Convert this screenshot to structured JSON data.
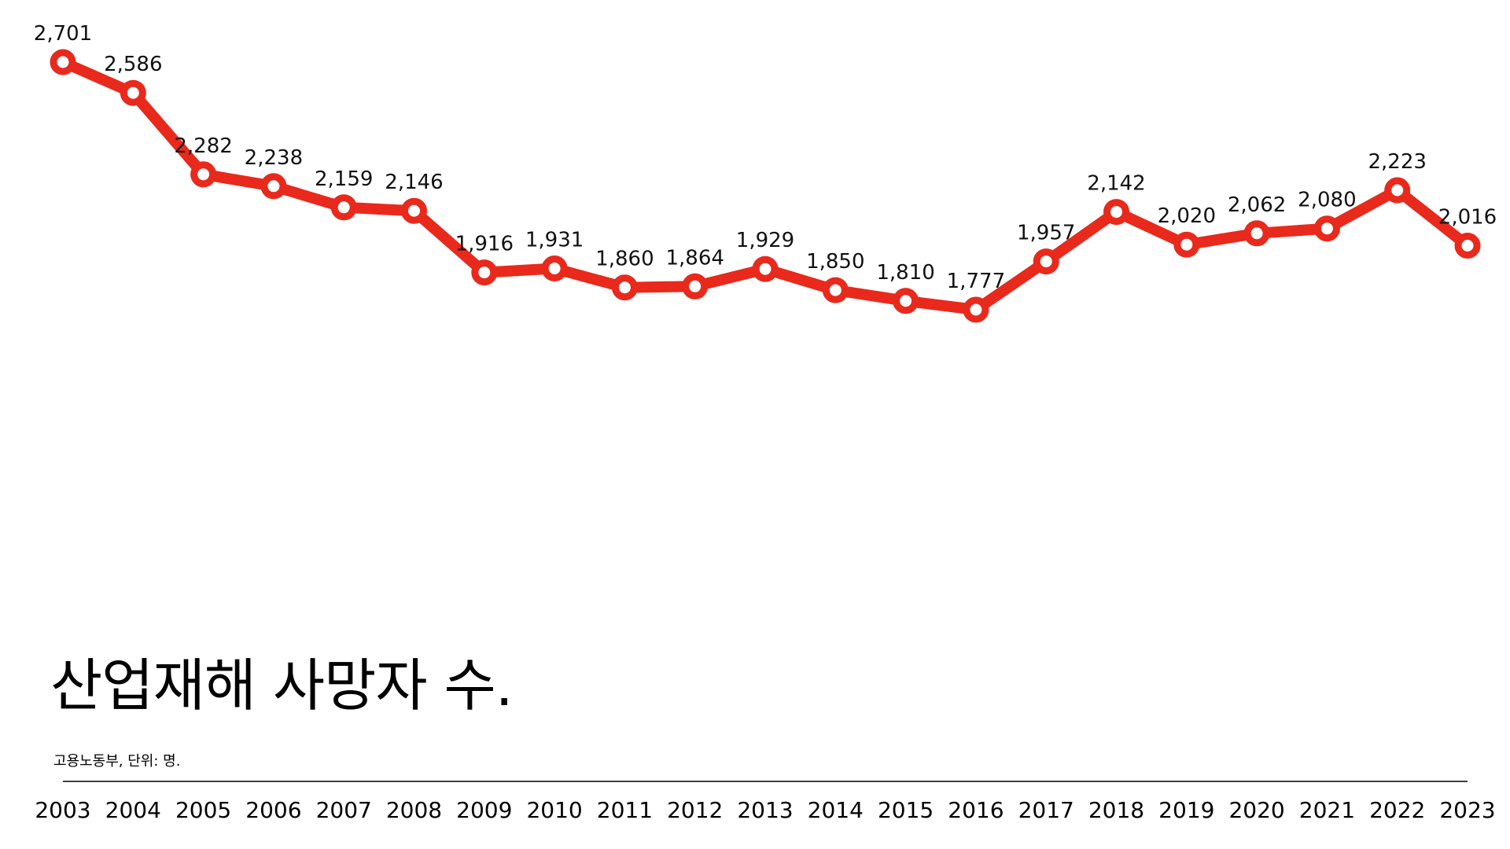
{
  "chart_data": {
    "type": "line",
    "title": "산업재해 사망자 수.",
    "subtitle": "고용노동부, 단위: 명.",
    "categories": [
      "2003",
      "2004",
      "2005",
      "2006",
      "2007",
      "2008",
      "2009",
      "2010",
      "2011",
      "2012",
      "2013",
      "2014",
      "2015",
      "2016",
      "2017",
      "2018",
      "2019",
      "2020",
      "2021",
      "2022",
      "2023"
    ],
    "series": [
      {
        "color": "#e8291c",
        "values": [
          2701,
          2586,
          2282,
          2238,
          2159,
          2146,
          1916,
          1931,
          1860,
          1864,
          1929,
          1850,
          1810,
          1777,
          1957,
          2142,
          2020,
          2062,
          2080,
          2223,
          2016
        ]
      }
    ],
    "data_labels": [
      "2,701",
      "2,586",
      "2,282",
      "2,238",
      "2,159",
      "2,146",
      "1,916",
      "1,931",
      "1,860",
      "1,864",
      "1,929",
      "1,850",
      "1,810",
      "1,777",
      "1,957",
      "2,142",
      "2,020",
      "2,062",
      "2,080",
      "2,223",
      "2,016"
    ],
    "grid": false,
    "y_axis_visible": false,
    "marker": "hollow-circle"
  }
}
